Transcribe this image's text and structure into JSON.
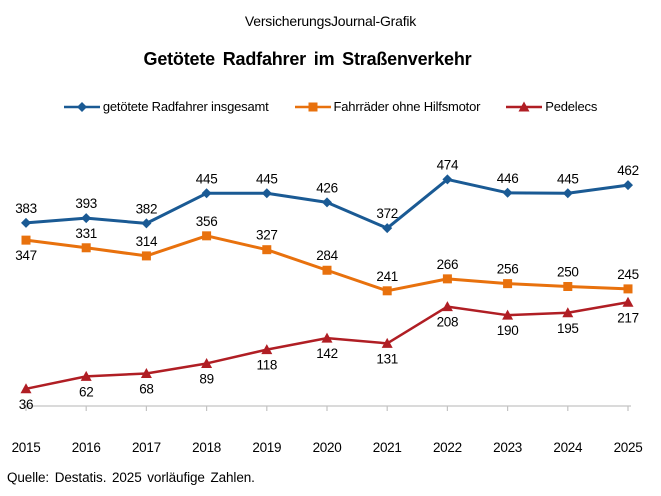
{
  "header": {
    "brand": "VersicherungsJournal-Grafik"
  },
  "title": "Getötete Radfahrer im Straßenverkehr",
  "legend_items": [
    {
      "label": "getötete Radfahrer insgesamt",
      "color": "#1A5A94",
      "marker": "diamond"
    },
    {
      "label": "Fahrräder ohne Hilfsmotor",
      "color": "#E8710D",
      "marker": "square"
    },
    {
      "label": "Pedelecs",
      "color": "#B01E24",
      "marker": "triangle"
    }
  ],
  "chart_data": {
    "type": "line",
    "title": "Getötete Radfahrer im Straßenverkehr",
    "categories": [
      "2015",
      "2016",
      "2017",
      "2018",
      "2019",
      "2020",
      "2021",
      "2022",
      "2023",
      "2024",
      "2025"
    ],
    "series": [
      {
        "name": "getötete Radfahrer insgesamt",
        "color": "#1A5A94",
        "marker": "diamond",
        "line_width": 3,
        "values": [
          383,
          393,
          382,
          445,
          445,
          426,
          372,
          474,
          446,
          445,
          462
        ],
        "label_positions": [
          "above",
          "above",
          "above",
          "above",
          "above",
          "above",
          "above",
          "above",
          "above",
          "above",
          "above"
        ]
      },
      {
        "name": "Fahrräder ohne Hilfsmotor",
        "color": "#E8710D",
        "marker": "square",
        "line_width": 3,
        "values": [
          347,
          331,
          314,
          356,
          327,
          284,
          241,
          266,
          256,
          250,
          245
        ],
        "label_positions": [
          "below",
          "above",
          "above",
          "above",
          "above",
          "above",
          "above",
          "above",
          "above",
          "above",
          "above"
        ]
      },
      {
        "name": "Pedelecs",
        "color": "#B01E24",
        "marker": "triangle",
        "line_width": 2.5,
        "values": [
          36,
          62,
          68,
          89,
          118,
          142,
          131,
          208,
          190,
          195,
          217
        ],
        "label_positions": [
          "below",
          "below",
          "below",
          "below",
          "below",
          "below",
          "below",
          "below",
          "below",
          "below",
          "below"
        ]
      }
    ],
    "xlabel": "",
    "ylabel": "",
    "ylim": [
      0,
      560
    ],
    "grid": false,
    "data_labels": true,
    "legend_position": "top",
    "axis_color": "#C3C3C3",
    "label_color": "#000000"
  },
  "source": "Quelle: Destatis. 2025 vorläufige Zahlen."
}
